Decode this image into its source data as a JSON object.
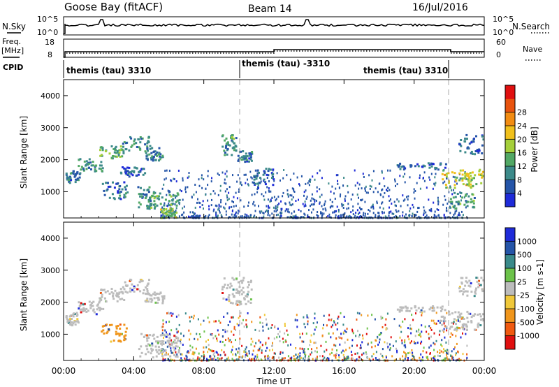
{
  "header": {
    "station": "Goose Bay (fitACF)",
    "beam": "Beam 14",
    "date": "16/Jul/2016"
  },
  "noise_panel": {
    "left_label": "N.Sky",
    "right_label": "N.Search",
    "y_ticks": [
      "10^5",
      "10^0"
    ]
  },
  "freq_panel": {
    "left_label_line1": "Freq.",
    "left_label_line2": "[MHz]",
    "right_label": "Nave",
    "left_ticks": [
      "18",
      "8"
    ],
    "right_ticks": [
      "60",
      "0"
    ]
  },
  "cpid_panel": {
    "label": "CPID",
    "segments": [
      "themis (tau) 3310",
      "themis (tau) -3310",
      "themis (tau) 3310"
    ]
  },
  "x_axis": {
    "label": "Time UT",
    "ticks": [
      "00:00",
      "04:00",
      "08:00",
      "12:00",
      "16:00",
      "20:00",
      "00:00"
    ]
  },
  "colors": {
    "power": [
      "#1f2bd9",
      "#2555a8",
      "#3c8a8a",
      "#52a865",
      "#a5cf3a",
      "#f0c01c",
      "#f28c12",
      "#e8530e",
      "#e01010"
    ],
    "velocity": [
      "#e01010",
      "#f05a10",
      "#f0961c",
      "#f0c83a",
      "#bcbcbc",
      "#6cc24a",
      "#3a8a8a",
      "#2555a8",
      "#1f2bd9"
    ],
    "ground_scatter": "#bcbcbc"
  },
  "chart_data": [
    {
      "type": "heatmap",
      "name": "power",
      "ylabel": "Slant Range [km]",
      "xlabel": "",
      "xlim": [
        0,
        24
      ],
      "ylim": [
        180,
        4500
      ],
      "y_ticks": [
        1000,
        2000,
        3000,
        4000
      ],
      "colorbar": {
        "label": "Power [dB]",
        "ticks": [
          "4",
          "8",
          "12",
          "16",
          "20",
          "24",
          "28"
        ],
        "range": [
          0,
          32
        ]
      },
      "blobs": [
        {
          "t0": 0.1,
          "t1": 0.9,
          "r0": 1300,
          "r1": 1700,
          "value": 8
        },
        {
          "t0": 0.8,
          "t1": 2.2,
          "r0": 1650,
          "r1": 2050,
          "value": 9
        },
        {
          "t0": 2.0,
          "t1": 3.4,
          "r0": 2050,
          "r1": 2450,
          "value": 13
        },
        {
          "t0": 3.3,
          "t1": 4.9,
          "r0": 2300,
          "r1": 2750,
          "value": 10
        },
        {
          "t0": 4.6,
          "t1": 5.7,
          "r0": 2000,
          "r1": 2400,
          "value": 8
        },
        {
          "t0": 2.1,
          "t1": 3.6,
          "r0": 800,
          "r1": 1350,
          "value": 7
        },
        {
          "t0": 3.2,
          "t1": 4.6,
          "r0": 1500,
          "r1": 1800,
          "value": 6
        },
        {
          "t0": 4.2,
          "t1": 5.2,
          "r0": 500,
          "r1": 1200,
          "value": 9
        },
        {
          "t0": 4.8,
          "t1": 6.6,
          "r0": 500,
          "r1": 1050,
          "value": 12
        },
        {
          "t0": 5.5,
          "t1": 6.4,
          "r0": 200,
          "r1": 500,
          "value": 15
        },
        {
          "t0": 9.0,
          "t1": 9.8,
          "r0": 2150,
          "r1": 2800,
          "value": 10
        },
        {
          "t0": 9.9,
          "t1": 10.7,
          "r0": 1950,
          "r1": 2300,
          "value": 7
        },
        {
          "t0": 10.8,
          "t1": 12.0,
          "r0": 1200,
          "r1": 1750,
          "value": 6
        },
        {
          "t0": 19.0,
          "t1": 21.8,
          "r0": 1720,
          "r1": 1920,
          "value": 6
        },
        {
          "t0": 21.5,
          "t1": 23.9,
          "r0": 1150,
          "r1": 1750,
          "value": 17
        },
        {
          "t0": 22.5,
          "t1": 23.9,
          "r0": 2200,
          "r1": 2800,
          "value": 6
        },
        {
          "t0": 22.0,
          "t1": 23.4,
          "r0": 500,
          "r1": 1000,
          "value": 11
        }
      ]
    },
    {
      "type": "heatmap",
      "name": "velocity",
      "ylabel": "Slant Range [km]",
      "xlabel": "Time UT",
      "xlim": [
        0,
        24
      ],
      "ylim": [
        180,
        4500
      ],
      "y_ticks": [
        1000,
        2000,
        3000,
        4000
      ],
      "colorbar": {
        "label": "Velocity [m s-1]",
        "ticks": [
          "1000",
          "500",
          "100",
          "25",
          "-25",
          "-100",
          "-500",
          "-1000"
        ]
      },
      "blobs": [
        {
          "t0": 0.1,
          "t1": 0.9,
          "r0": 1300,
          "r1": 1700,
          "value": 4
        },
        {
          "t0": 0.8,
          "t1": 2.2,
          "r0": 1650,
          "r1": 2050,
          "value": 4
        },
        {
          "t0": 2.0,
          "t1": 3.4,
          "r0": 2050,
          "r1": 2450,
          "value": 4
        },
        {
          "t0": 3.3,
          "t1": 4.9,
          "r0": 2300,
          "r1": 2750,
          "value": 4
        },
        {
          "t0": 4.6,
          "t1": 5.7,
          "r0": 2000,
          "r1": 2400,
          "value": 4
        },
        {
          "t0": 2.1,
          "t1": 3.6,
          "r0": 800,
          "r1": 1350,
          "value": 2
        },
        {
          "t0": 4.2,
          "t1": 6.6,
          "r0": 300,
          "r1": 1050,
          "value": 4
        },
        {
          "t0": 9.0,
          "t1": 10.7,
          "r0": 1950,
          "r1": 2800,
          "value": 4
        },
        {
          "t0": 19.0,
          "t1": 21.8,
          "r0": 1720,
          "r1": 1920,
          "value": 4
        },
        {
          "t0": 21.5,
          "t1": 23.9,
          "r0": 1150,
          "r1": 1750,
          "value": 4
        },
        {
          "t0": 22.5,
          "t1": 23.9,
          "r0": 2200,
          "r1": 2800,
          "value": 4
        }
      ]
    }
  ]
}
